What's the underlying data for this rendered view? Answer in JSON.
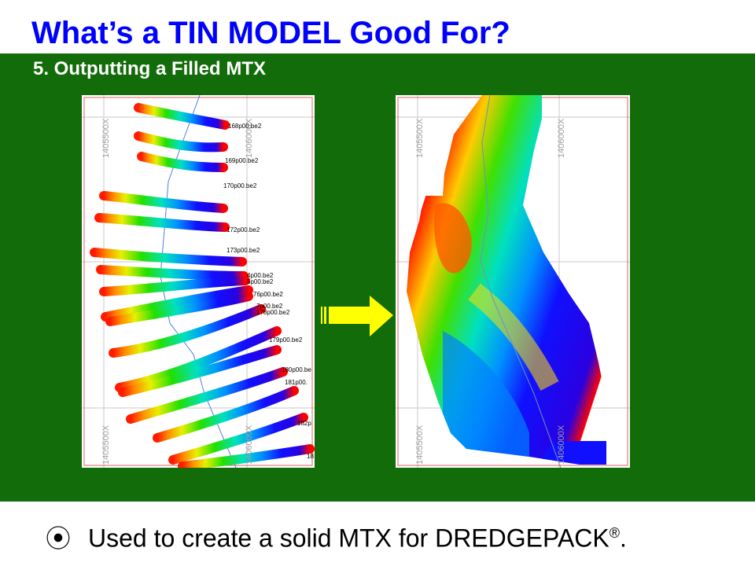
{
  "slide": {
    "title": "What’s a TIN MODEL Good For?",
    "subtitle": "5.  Outputting a Filled MTX",
    "bullet": {
      "icon": "circled-dot-bullet-icon",
      "glyph": "⦿",
      "text": "Used to create a solid MTX for DREDGEPACK",
      "registered_mark": "®",
      "end": "."
    }
  },
  "left_map": {
    "grid_labels": [
      "1405500X",
      "1406000X",
      "1405500X",
      "1406000X"
    ],
    "line_labels": [
      "168p00.be2",
      "169p00.be2",
      "170p00.be2",
      "172p00.be2",
      "173p00.be2",
      "4p00.be2",
      "5p00.be2",
      "76p00.be2",
      "7p00.be2",
      "178p00.be2",
      "179p00.be2",
      "180p00.be",
      "181p00.",
      "182p",
      "18"
    ]
  },
  "right_map": {
    "grid_labels": [
      "1405500X",
      "1406000X",
      "1405500X",
      "1406000X"
    ]
  },
  "colors": {
    "background_band": "#136C0A",
    "title": "#0000FF",
    "subtitle": "#FFFFFF",
    "arrow": "#FFFF00"
  }
}
